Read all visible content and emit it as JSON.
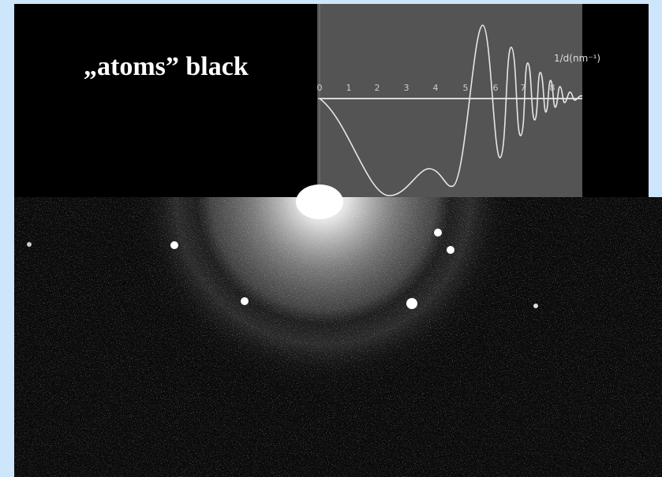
{
  "slide": {
    "caption": "„atoms” black",
    "plot": {
      "x_axis_label": "1/d(nm⁻¹)",
      "tick_labels": [
        "0",
        "1",
        "2",
        "3",
        "4",
        "5",
        "6",
        "7",
        "8"
      ]
    }
  }
}
